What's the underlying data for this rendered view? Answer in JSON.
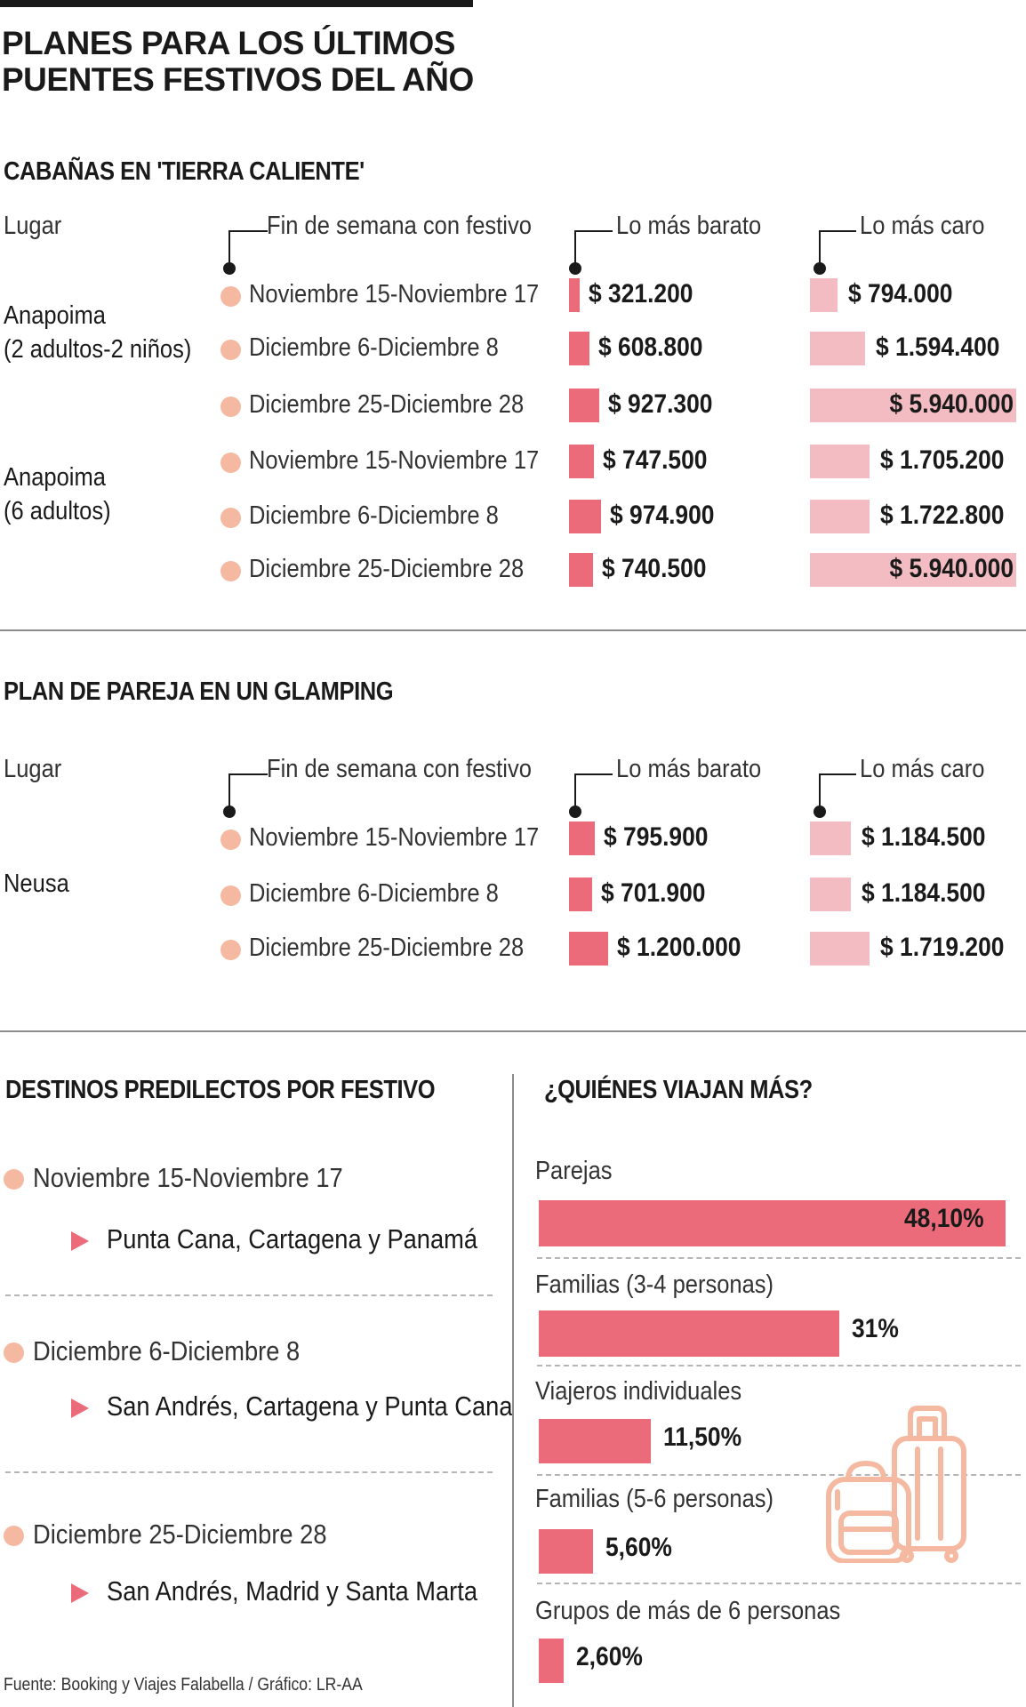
{
  "title_line1": "PLANES PARA LOS ÚLTIMOS",
  "title_line2": "PUENTES FESTIVOS DEL AÑO",
  "headers": {
    "lugar": "Lugar",
    "fin_semana": "Fin de semana con festivo",
    "barato": "Lo más barato",
    "caro": "Lo más caro"
  },
  "dates": [
    "Noviembre 15-Noviembre 17",
    "Diciembre 6-Diciembre 8",
    "Diciembre 25-Diciembre 28"
  ],
  "cabanas": {
    "title": "CABAÑAS EN 'TIERRA CALIENTE'",
    "groups": [
      {
        "place_line1": "Anapoima",
        "place_line2": "(2 adultos-2 niños)",
        "rows": [
          {
            "barato": 321200,
            "barato_label": "$ 321.200",
            "caro": 794000,
            "caro_label": "$ 794.000"
          },
          {
            "barato": 608800,
            "barato_label": "$ 608.800",
            "caro": 1594400,
            "caro_label": "$ 1.594.400"
          },
          {
            "barato": 927300,
            "barato_label": "$ 927.300",
            "caro": 5940000,
            "caro_label": "$ 5.940.000"
          }
        ]
      },
      {
        "place_line1": "Anapoima",
        "place_line2": "(6 adultos)",
        "rows": [
          {
            "barato": 747500,
            "barato_label": "$ 747.500",
            "caro": 1705200,
            "caro_label": "$ 1.705.200"
          },
          {
            "barato": 974900,
            "barato_label": "$ 974.900",
            "caro": 1722800,
            "caro_label": "$ 1.722.800"
          },
          {
            "barato": 740500,
            "barato_label": "$ 740.500",
            "caro": 5940000,
            "caro_label": "$ 5.940.000"
          }
        ]
      }
    ]
  },
  "glamping": {
    "title": "PLAN DE PAREJA EN UN GLAMPING",
    "place": "Neusa",
    "rows": [
      {
        "barato": 795900,
        "barato_label": "$ 795.900",
        "caro": 1184500,
        "caro_label": "$ 1.184.500"
      },
      {
        "barato": 701900,
        "barato_label": "$ 701.900",
        "caro": 1184500,
        "caro_label": "$ 1.184.500"
      },
      {
        "barato": 1200000,
        "barato_label": "$ 1.200.000",
        "caro": 1719200,
        "caro_label": "$ 1.719.200"
      }
    ]
  },
  "destinos": {
    "title": "DESTINOS PREDILECTOS POR FESTIVO",
    "items": [
      {
        "date": "Noviembre 15-Noviembre 17",
        "places": "Punta Cana, Cartagena y Panamá"
      },
      {
        "date": "Diciembre 6-Diciembre 8",
        "places": "San Andrés, Cartagena y Punta Cana"
      },
      {
        "date": "Diciembre 25-Diciembre 28",
        "places": "San Andrés, Madrid y Santa Marta"
      }
    ]
  },
  "quienes": {
    "title": "¿QUIÉNES VIAJAN MÁS?",
    "items": [
      {
        "label": "Parejas",
        "value": 48.1,
        "value_label": "48,10%"
      },
      {
        "label": "Familias (3-4 personas)",
        "value": 31,
        "value_label": "31%"
      },
      {
        "label": "Viajeros individuales",
        "value": 11.5,
        "value_label": "11,50%"
      },
      {
        "label": "Familias (5-6 personas)",
        "value": 5.6,
        "value_label": "5,60%"
      },
      {
        "label": "Grupos de más de 6 personas",
        "value": 2.6,
        "value_label": "2,60%"
      }
    ]
  },
  "source": "Fuente: Booking y Viajes Falabella / Gráfico: LR-AA",
  "chart_data": [
    {
      "type": "bar",
      "title": "CABAÑAS EN 'TIERRA CALIENTE' - Anapoima (2 adultos-2 niños)",
      "categories": [
        "Noviembre 15-Noviembre 17",
        "Diciembre 6-Diciembre 8",
        "Diciembre 25-Diciembre 28"
      ],
      "series": [
        {
          "name": "Lo más barato",
          "values": [
            321200,
            608800,
            927300
          ]
        },
        {
          "name": "Lo más caro",
          "values": [
            794000,
            1594400,
            5940000
          ]
        }
      ]
    },
    {
      "type": "bar",
      "title": "CABAÑAS EN 'TIERRA CALIENTE' - Anapoima (6 adultos)",
      "categories": [
        "Noviembre 15-Noviembre 17",
        "Diciembre 6-Diciembre 8",
        "Diciembre 25-Diciembre 28"
      ],
      "series": [
        {
          "name": "Lo más barato",
          "values": [
            747500,
            974900,
            740500
          ]
        },
        {
          "name": "Lo más caro",
          "values": [
            1705200,
            1722800,
            5940000
          ]
        }
      ]
    },
    {
      "type": "bar",
      "title": "PLAN DE PAREJA EN UN GLAMPING - Neusa",
      "categories": [
        "Noviembre 15-Noviembre 17",
        "Diciembre 6-Diciembre 8",
        "Diciembre 25-Diciembre 28"
      ],
      "series": [
        {
          "name": "Lo más barato",
          "values": [
            795900,
            701900,
            1200000
          ]
        },
        {
          "name": "Lo más caro",
          "values": [
            1184500,
            1184500,
            1719200
          ]
        }
      ]
    },
    {
      "type": "bar",
      "title": "¿QUIÉNES VIAJAN MÁS?",
      "ylabel": "%",
      "categories": [
        "Parejas",
        "Familias (3-4 personas)",
        "Viajeros individuales",
        "Familias (5-6 personas)",
        "Grupos de más de 6 personas"
      ],
      "values": [
        48.1,
        31,
        11.5,
        5.6,
        2.6
      ]
    }
  ]
}
